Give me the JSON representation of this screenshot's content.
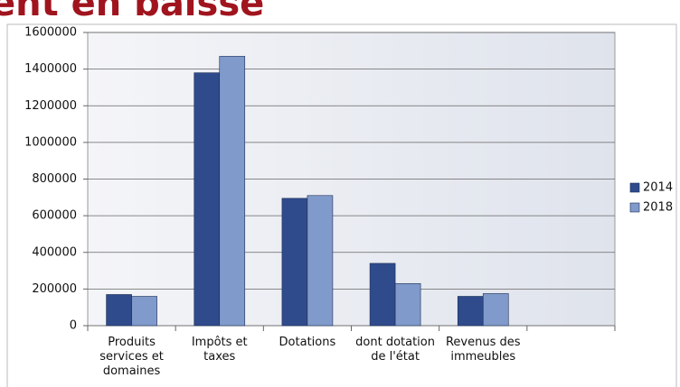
{
  "chart_data": {
    "type": "bar",
    "title": "ent en baisse",
    "categories": [
      "Produits services et domaines",
      "Impôts et taxes",
      "Dotations",
      "dont dotation de l'état",
      "Revenus des immeubles",
      null
    ],
    "series": [
      {
        "name": "2014",
        "color": "#2f4b8c",
        "values": [
          170000,
          1380000,
          695000,
          340000,
          160000,
          null
        ]
      },
      {
        "name": "2018",
        "color": "#809acb",
        "values": [
          160000,
          1470000,
          710000,
          230000,
          175000,
          null
        ]
      }
    ],
    "ylim": [
      0,
      1600000
    ],
    "yticks": [
      0,
      200000,
      400000,
      600000,
      800000,
      1000000,
      1200000,
      1400000,
      1600000
    ],
    "grid": true,
    "legend": "right"
  }
}
